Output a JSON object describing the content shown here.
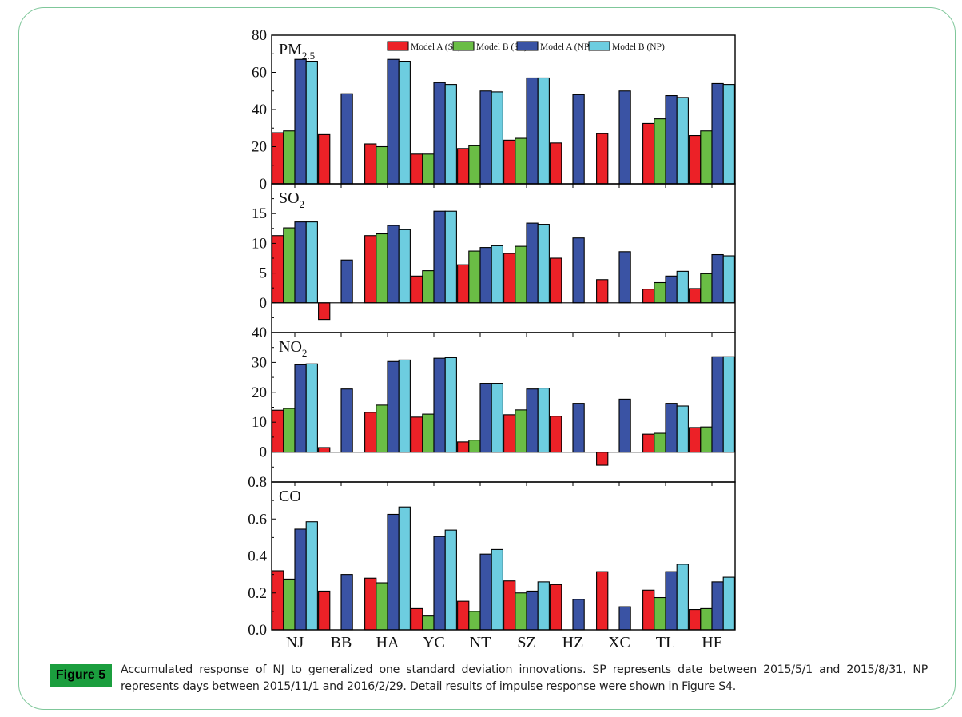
{
  "figure": {
    "badge": "Figure 5",
    "caption": "Accumulated response of NJ to generalized one standard deviation innovations. SP represents date between 2015/5/1 and 2015/8/31, NP represents days between 2015/11/1 and 2016/2/29. Detail results of impulse response were shown in Figure S4."
  },
  "chart_data": {
    "type": "bar",
    "title": "",
    "xlabel": "",
    "categories": [
      "NJ",
      "BB",
      "HA",
      "YC",
      "NT",
      "SZ",
      "HZ",
      "XC",
      "TL",
      "HF"
    ],
    "legend": {
      "placement": "top-right",
      "entries": [
        "Model A (SP)",
        "Model B (SP)",
        "Model A (NP)",
        "Model B (NP)"
      ]
    },
    "colors": {
      "Model A (SP)": "#ec2127",
      "Model B (SP)": "#6abd45",
      "Model A (NP)": "#3a53a4",
      "Model B (NP)": "#6dcde0"
    },
    "panels": [
      {
        "label": "PM",
        "label_sub": "2.5",
        "ylim": [
          0,
          80
        ],
        "yticks": [
          0,
          20,
          40,
          60,
          80
        ],
        "ytick_labels": [
          "0",
          "20",
          "40",
          "60",
          "80"
        ],
        "series": [
          {
            "name": "Model A (SP)",
            "values": [
              27.5,
              26.5,
              21.5,
              16,
              19,
              23.5,
              22,
              27,
              32.5,
              26
            ]
          },
          {
            "name": "Model B (SP)",
            "values": [
              28.5,
              null,
              20,
              16,
              20.5,
              24.5,
              null,
              null,
              35,
              28.5
            ]
          },
          {
            "name": "Model A (NP)",
            "values": [
              67,
              48.5,
              67,
              54.5,
              50,
              57,
              48,
              50,
              47.5,
              54
            ]
          },
          {
            "name": "Model B (NP)",
            "values": [
              66,
              null,
              66,
              53.5,
              49.5,
              57,
              null,
              null,
              46.5,
              53.5
            ]
          }
        ]
      },
      {
        "label": "SO",
        "label_sub": "2",
        "ylim": [
          -5,
          20
        ],
        "yticks": [
          0,
          5,
          10,
          15
        ],
        "ytick_labels": [
          "0",
          "5",
          "10",
          "15"
        ],
        "series": [
          {
            "name": "Model A (SP)",
            "values": [
              11.3,
              -2.8,
              11.3,
              4.5,
              6.4,
              8.3,
              7.5,
              3.9,
              2.3,
              2.4
            ]
          },
          {
            "name": "Model B (SP)",
            "values": [
              12.6,
              null,
              11.6,
              5.4,
              8.7,
              9.5,
              null,
              null,
              3.4,
              4.9
            ]
          },
          {
            "name": "Model A (NP)",
            "values": [
              13.6,
              7.2,
              13.0,
              15.4,
              9.3,
              13.4,
              10.9,
              8.6,
              4.5,
              8.1
            ]
          },
          {
            "name": "Model B (NP)",
            "values": [
              13.6,
              null,
              12.3,
              15.4,
              9.6,
              13.2,
              null,
              null,
              5.3,
              7.9
            ]
          }
        ]
      },
      {
        "label": "NO",
        "label_sub": "2",
        "ylim": [
          -10,
          40
        ],
        "yticks": [
          0,
          10,
          20,
          30,
          40
        ],
        "ytick_labels": [
          "0",
          "10",
          "20",
          "30",
          "40"
        ],
        "series": [
          {
            "name": "Model A (SP)",
            "values": [
              14,
              1.5,
              13.3,
              11.7,
              3.4,
              12.5,
              12,
              -4.4,
              6,
              8.2
            ]
          },
          {
            "name": "Model B (SP)",
            "values": [
              14.6,
              null,
              15.7,
              12.7,
              4,
              14.1,
              null,
              null,
              6.3,
              8.4
            ]
          },
          {
            "name": "Model A (NP)",
            "values": [
              29.2,
              21.1,
              30.3,
              31.4,
              23,
              21.1,
              16.3,
              17.7,
              16.3,
              31.9
            ]
          },
          {
            "name": "Model B (NP)",
            "values": [
              29.5,
              null,
              30.8,
              31.6,
              23,
              21.4,
              null,
              null,
              15.4,
              31.9
            ]
          }
        ]
      },
      {
        "label": "CO",
        "label_sub": "",
        "ylim": [
          0,
          0.8
        ],
        "yticks": [
          0,
          0.2,
          0.4,
          0.6,
          0.8
        ],
        "ytick_labels": [
          "0.0",
          "0.2",
          "0.4",
          "0.6",
          "0.8"
        ],
        "series": [
          {
            "name": "Model A (SP)",
            "values": [
              0.32,
              0.21,
              0.28,
              0.115,
              0.155,
              0.265,
              0.245,
              0.315,
              0.215,
              0.11
            ]
          },
          {
            "name": "Model B (SP)",
            "values": [
              0.275,
              null,
              0.255,
              0.075,
              0.1,
              0.2,
              null,
              null,
              0.175,
              0.115
            ]
          },
          {
            "name": "Model A (NP)",
            "values": [
              0.545,
              0.3,
              0.625,
              0.505,
              0.41,
              0.21,
              0.165,
              0.125,
              0.315,
              0.26
            ]
          },
          {
            "name": "Model B (NP)",
            "values": [
              0.585,
              null,
              0.665,
              0.54,
              0.435,
              0.26,
              null,
              null,
              0.355,
              0.285
            ]
          }
        ]
      }
    ]
  }
}
